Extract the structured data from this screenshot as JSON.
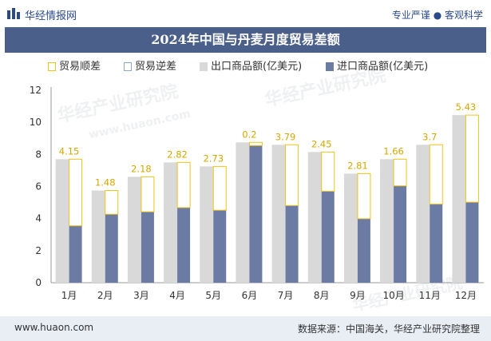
{
  "header": {
    "brand": "华经情报网",
    "slogan": "专业严谨 ● 客观科学"
  },
  "footer": {
    "url": "www.huaon.com",
    "source": "数据来源：中国海关，华经产业研究院整理"
  },
  "watermarks": [
    "华经产业研究院",
    "www.huaon.com"
  ],
  "colors": {
    "title_bg": "#4a5f8a",
    "export_bar": "#d9d9d9",
    "import_bar": "#6b7ba4",
    "surplus_line": "#f0c419",
    "deficit_line": "#8fa8c8",
    "footer_bg": "#e9edf4"
  },
  "chart_data": {
    "type": "bar",
    "title": "2024年中国与丹麦月度贸易差额",
    "categories": [
      "1月",
      "2月",
      "3月",
      "4月",
      "5月",
      "6月",
      "7月",
      "8月",
      "9月",
      "10月",
      "11月",
      "12月"
    ],
    "legend": [
      "贸易顺差",
      "贸易逆差",
      "出口商品额(亿美元)",
      "进口商品额(亿美元)"
    ],
    "series": [
      {
        "name": "出口商品额(亿美元)",
        "values": [
          7.7,
          5.75,
          6.6,
          7.5,
          7.25,
          8.75,
          8.6,
          8.15,
          6.8,
          7.7,
          8.6,
          10.45
        ]
      },
      {
        "name": "进口商品额(亿美元)",
        "values": [
          3.55,
          4.27,
          4.42,
          4.68,
          4.52,
          8.55,
          4.81,
          5.7,
          3.99,
          6.04,
          4.9,
          5.02
        ]
      }
    ],
    "balance": {
      "name": "贸易顺差",
      "values": [
        4.15,
        1.48,
        2.18,
        2.82,
        2.73,
        0.2,
        3.79,
        2.45,
        2.81,
        1.66,
        3.7,
        5.43
      ],
      "labels": [
        "4.15",
        "1.48",
        "2.18",
        "2.82",
        "2.73",
        "0.2",
        "3.79",
        "2.45",
        "2.81",
        "1.66",
        "3.7",
        "5.43"
      ]
    },
    "ylim": [
      0,
      12
    ],
    "yticks": [
      "0",
      "2",
      "4",
      "6",
      "8",
      "10",
      "12"
    ],
    "grid": false,
    "legend_position": "top"
  }
}
